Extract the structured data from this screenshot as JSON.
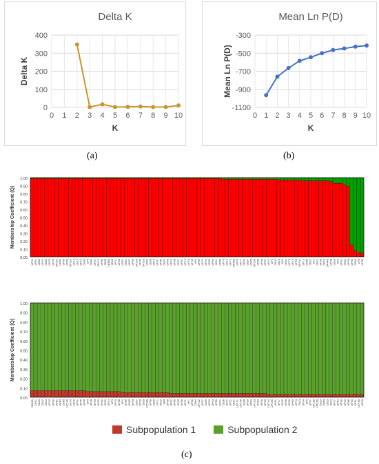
{
  "captions": {
    "a": "(a)",
    "b": "(b)",
    "c": "(c)"
  },
  "chart_data": [
    {
      "type": "line",
      "title": "Delta K",
      "xlabel": "K",
      "ylabel": "Delta K",
      "xlim": [
        0,
        10
      ],
      "ylim": [
        0,
        400
      ],
      "xticks": [
        "0",
        "1",
        "2",
        "3",
        "4",
        "5",
        "6",
        "7",
        "8",
        "9",
        "10"
      ],
      "yticks": [
        "0",
        "100",
        "200",
        "300",
        "400"
      ],
      "grid": true,
      "color": "#c9952e",
      "x": [
        2,
        3,
        4,
        5,
        6,
        7,
        8,
        9,
        10
      ],
      "y": [
        348,
        2,
        17,
        2,
        3,
        5,
        2,
        2,
        11
      ]
    },
    {
      "type": "line",
      "title": "Mean Ln P(D)",
      "xlabel": "K",
      "ylabel": "Mean Ln P(D)",
      "xlim": [
        0,
        10
      ],
      "ylim": [
        -1100,
        -300
      ],
      "xticks": [
        "0",
        "1",
        "2",
        "3",
        "4",
        "5",
        "6",
        "7",
        "8",
        "9",
        "10"
      ],
      "yticks": [
        "-300",
        "-500",
        "-700",
        "-900",
        "-1100"
      ],
      "grid": true,
      "color": "#4472c4",
      "x": [
        1,
        2,
        3,
        4,
        5,
        6,
        7,
        8,
        9,
        10
      ],
      "y": [
        -965,
        -760,
        -665,
        -585,
        -545,
        -500,
        -465,
        -448,
        -428,
        -415
      ]
    },
    {
      "type": "bar",
      "stacked": true,
      "ylabel": "Membership Coefficient (Q)",
      "yticks": [
        "0.00",
        "0.10",
        "0.20",
        "0.30",
        "0.40",
        "0.50",
        "0.60",
        "0.70",
        "0.80",
        "0.90",
        "1.00"
      ],
      "ylim": [
        0,
        1
      ],
      "bar_count": 96,
      "categories": [
        "UP24",
        "UP81",
        "CB60",
        "UP42",
        "CB53",
        "UP26",
        "UP28",
        "UP101",
        "UP83",
        "UP90",
        "UP93",
        "UP102",
        "UP15",
        "CB19",
        "UP10",
        "CB39",
        "UP9",
        "CB64",
        "UP47",
        "CB172",
        "UP65",
        "CB35",
        "CB35B",
        "CB43",
        "UP11",
        "UP55",
        "UP61",
        "CB51",
        "UP37",
        "UP99",
        "UP100",
        "UP30",
        "UP103",
        "UP84",
        "CB36",
        "UP12",
        "UP31",
        "UP59",
        "CB26",
        "UP60",
        "UP18",
        "UP98",
        "UP27",
        "UP97",
        "UP16",
        "UP23",
        "UP45",
        "UP6",
        "UP69",
        "UP73",
        "UP44",
        "UP82",
        "UP94",
        "CB11",
        "UP68",
        "UP70",
        "UP14",
        "UP72",
        "UP42B",
        "UP29",
        "UP77",
        "UP34",
        "CB37",
        "UP25",
        "UP106",
        "UP89",
        "UP48",
        "UP57",
        "UP22",
        "UP4",
        "CB45",
        "CB16",
        "UP3",
        "CB42",
        "UP76",
        "UP19",
        "UP95",
        "UP104",
        "UP13",
        "UP66",
        "CB22",
        "UP1",
        "CB21",
        "UP35",
        "CB18",
        "UP44B",
        "UP46",
        "CB28",
        "UP2",
        "UP41",
        "CB31",
        "UP38",
        "UP63",
        "CB33",
        "UP8",
        "UP39"
      ],
      "series": [
        {
          "name": "Subpopulation 1",
          "color": "#ff0000",
          "values": [
            0.99,
            0.99,
            0.99,
            0.99,
            0.99,
            0.99,
            0.99,
            0.99,
            0.99,
            0.99,
            0.99,
            0.99,
            0.99,
            0.99,
            0.99,
            0.99,
            0.99,
            0.99,
            0.99,
            0.99,
            0.99,
            0.99,
            0.99,
            0.99,
            0.99,
            0.99,
            0.99,
            0.99,
            0.99,
            0.99,
            0.99,
            0.99,
            0.99,
            0.99,
            0.99,
            0.99,
            0.99,
            0.99,
            0.99,
            0.99,
            0.99,
            0.99,
            0.99,
            0.99,
            0.99,
            0.99,
            0.99,
            0.99,
            0.99,
            0.99,
            0.99,
            0.99,
            0.99,
            0.99,
            0.99,
            0.98,
            0.98,
            0.98,
            0.98,
            0.98,
            0.98,
            0.98,
            0.98,
            0.98,
            0.98,
            0.98,
            0.98,
            0.98,
            0.98,
            0.98,
            0.98,
            0.97,
            0.97,
            0.97,
            0.97,
            0.97,
            0.97,
            0.97,
            0.96,
            0.96,
            0.96,
            0.96,
            0.96,
            0.96,
            0.96,
            0.96,
            0.95,
            0.93,
            0.93,
            0.93,
            0.91,
            0.89,
            0.15,
            0.08,
            0.05,
            0.05
          ]
        },
        {
          "name": "Subpopulation 2",
          "color": "#00a000",
          "values": [
            0.01,
            0.01,
            0.01,
            0.01,
            0.01,
            0.01,
            0.01,
            0.01,
            0.01,
            0.01,
            0.01,
            0.01,
            0.01,
            0.01,
            0.01,
            0.01,
            0.01,
            0.01,
            0.01,
            0.01,
            0.01,
            0.01,
            0.01,
            0.01,
            0.01,
            0.01,
            0.01,
            0.01,
            0.01,
            0.01,
            0.01,
            0.01,
            0.01,
            0.01,
            0.01,
            0.01,
            0.01,
            0.01,
            0.01,
            0.01,
            0.01,
            0.01,
            0.01,
            0.01,
            0.01,
            0.01,
            0.01,
            0.01,
            0.01,
            0.01,
            0.01,
            0.01,
            0.01,
            0.01,
            0.01,
            0.02,
            0.02,
            0.02,
            0.02,
            0.02,
            0.02,
            0.02,
            0.02,
            0.02,
            0.02,
            0.02,
            0.02,
            0.02,
            0.02,
            0.02,
            0.02,
            0.03,
            0.03,
            0.03,
            0.03,
            0.03,
            0.03,
            0.03,
            0.04,
            0.04,
            0.04,
            0.04,
            0.04,
            0.04,
            0.04,
            0.04,
            0.05,
            0.07,
            0.07,
            0.07,
            0.09,
            0.11,
            0.85,
            0.92,
            0.95,
            0.95
          ]
        }
      ]
    },
    {
      "type": "bar",
      "stacked": true,
      "ylabel": "Membership Coefficient (Q)",
      "yticks": [
        "0.00",
        "0.10",
        "0.20",
        "0.30",
        "0.40",
        "0.50",
        "0.60",
        "0.70",
        "0.80",
        "0.90",
        "1.00"
      ],
      "ylim": [
        0,
        1
      ],
      "bar_count": 96,
      "categories": [
        "CB18B",
        "CB31",
        "CB16",
        "CB22",
        "CB43",
        "UP10",
        "UP30",
        "UP81",
        "UP83",
        "CB60",
        "UP100",
        "UP24",
        "CB42",
        "UP42",
        "UP45",
        "UP46",
        "UP9",
        "UP28",
        "UP15",
        "UP25",
        "UP62",
        "UP82",
        "UP14",
        "UP3",
        "UP70",
        "UP98",
        "UP4",
        "UP69",
        "UP89",
        "UP33",
        "CB57",
        "UP18",
        "CB35",
        "UP30B",
        "UP58",
        "CB26",
        "UP11",
        "UP12",
        "UP8",
        "UP99",
        "UP37",
        "UP60",
        "UP93",
        "UP36",
        "UP31",
        "UP1",
        "UP56",
        "CB64",
        "UP102",
        "UP97",
        "CB39",
        "UP19",
        "UP43",
        "UP65",
        "UP21",
        "CB38",
        "UP47",
        "UP22",
        "CB21",
        "UP101",
        "UP106",
        "CB36",
        "UP59",
        "UP94",
        "UP103",
        "UP64",
        "UP35",
        "UP39",
        "UP104",
        "UP10B",
        "UP61",
        "UP17",
        "UP32",
        "UP48",
        "UP26",
        "UP63",
        "UP73",
        "CB23",
        "UP34",
        "UP6",
        "UP57",
        "UP11B",
        "UP37B",
        "CB19",
        "CB53",
        "CB33",
        "UP44",
        "UP27",
        "UP54",
        "UP38",
        "UP20",
        "UP88",
        "UP16",
        "UP91",
        "UP105",
        "UP29"
      ],
      "series": [
        {
          "name": "Subpopulation 1",
          "color": "#c0392b",
          "values": [
            0.07,
            0.07,
            0.07,
            0.07,
            0.07,
            0.07,
            0.07,
            0.07,
            0.07,
            0.07,
            0.07,
            0.07,
            0.07,
            0.07,
            0.07,
            0.07,
            0.06,
            0.06,
            0.06,
            0.06,
            0.06,
            0.06,
            0.06,
            0.06,
            0.06,
            0.06,
            0.05,
            0.05,
            0.05,
            0.05,
            0.05,
            0.05,
            0.05,
            0.05,
            0.05,
            0.05,
            0.05,
            0.05,
            0.05,
            0.05,
            0.04,
            0.04,
            0.04,
            0.04,
            0.04,
            0.04,
            0.04,
            0.04,
            0.04,
            0.04,
            0.04,
            0.04,
            0.04,
            0.04,
            0.04,
            0.04,
            0.04,
            0.04,
            0.04,
            0.04,
            0.04,
            0.04,
            0.04,
            0.04,
            0.04,
            0.04,
            0.04,
            0.04,
            0.03,
            0.03,
            0.03,
            0.03,
            0.03,
            0.03,
            0.03,
            0.03,
            0.03,
            0.03,
            0.03,
            0.03,
            0.03,
            0.03,
            0.03,
            0.03,
            0.03,
            0.03,
            0.03,
            0.03,
            0.03,
            0.03,
            0.03,
            0.03,
            0.03,
            0.03,
            0.03,
            0.03
          ]
        },
        {
          "name": "Subpopulation 2",
          "color": "#5aa02c",
          "values": [
            0.93,
            0.93,
            0.93,
            0.93,
            0.93,
            0.93,
            0.93,
            0.93,
            0.93,
            0.93,
            0.93,
            0.93,
            0.93,
            0.93,
            0.93,
            0.93,
            0.94,
            0.94,
            0.94,
            0.94,
            0.94,
            0.94,
            0.94,
            0.94,
            0.94,
            0.94,
            0.95,
            0.95,
            0.95,
            0.95,
            0.95,
            0.95,
            0.95,
            0.95,
            0.95,
            0.95,
            0.95,
            0.95,
            0.95,
            0.95,
            0.96,
            0.96,
            0.96,
            0.96,
            0.96,
            0.96,
            0.96,
            0.96,
            0.96,
            0.96,
            0.96,
            0.96,
            0.96,
            0.96,
            0.96,
            0.96,
            0.96,
            0.96,
            0.96,
            0.96,
            0.96,
            0.96,
            0.96,
            0.96,
            0.96,
            0.96,
            0.96,
            0.96,
            0.97,
            0.97,
            0.97,
            0.97,
            0.97,
            0.97,
            0.97,
            0.97,
            0.97,
            0.97,
            0.97,
            0.97,
            0.97,
            0.97,
            0.97,
            0.97,
            0.97,
            0.97,
            0.97,
            0.97,
            0.97,
            0.97,
            0.97,
            0.97,
            0.97,
            0.97,
            0.97,
            0.97
          ]
        }
      ]
    }
  ],
  "legend": {
    "items": [
      {
        "label": "Subpopulation 1",
        "color": "#c0392b"
      },
      {
        "label": "Subpopulation 2",
        "color": "#5aa02c"
      }
    ]
  }
}
